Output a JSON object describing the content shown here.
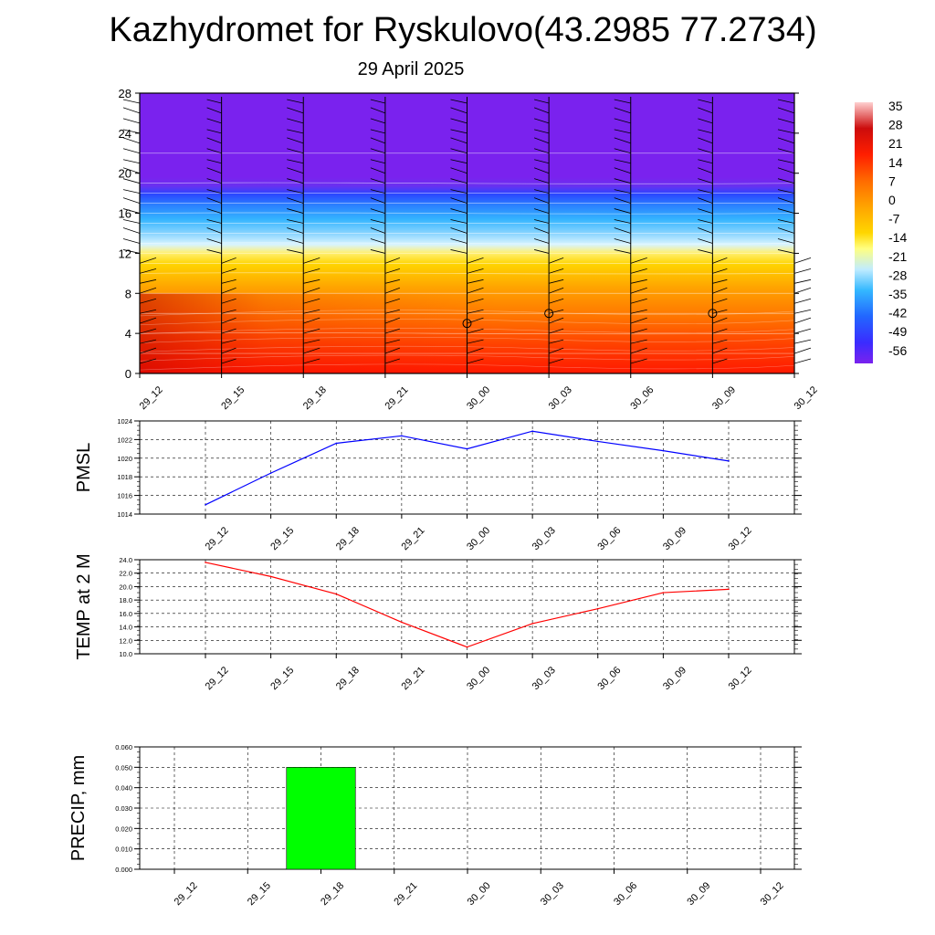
{
  "title": "Kazhydromet for Ryskulovo(43.2985 77.2734)",
  "subtitle": "29 April 2025",
  "colors": {
    "pmsl_line": "#0000ff",
    "temp_line": "#ff0000",
    "precip_bar": "#00ff00",
    "section_top": "#7a22ee",
    "section_bottom": "#ff1800"
  },
  "chart_data": [
    {
      "type": "heatmap",
      "title": "",
      "xlabel": "",
      "ylabel": "",
      "categories": [
        "29_12",
        "29_15",
        "29_18",
        "29_21",
        "30_00",
        "30_03",
        "30_06",
        "30_09",
        "30_12"
      ],
      "y_ticks": [
        0,
        4,
        8,
        12,
        16,
        20,
        24,
        28
      ],
      "ylim": [
        0,
        28
      ],
      "colorbar_labels": [
        "35",
        "28",
        "21",
        "14",
        "7",
        "0",
        "-7",
        "-14",
        "-21",
        "-28",
        "-35",
        "-42",
        "-49",
        "-56"
      ],
      "colorbar_range": [
        -60,
        40
      ],
      "levels": [
        0,
        2,
        4,
        6,
        8,
        10,
        11,
        12,
        13,
        14,
        15,
        16,
        17,
        18,
        19,
        22,
        28
      ],
      "values_by_level": [
        24,
        21,
        18,
        15,
        12,
        7,
        2,
        -4,
        -12,
        -22,
        -32,
        -40,
        -48,
        -56,
        -60,
        -60,
        -60
      ],
      "calm_markers": [
        {
          "time": "30_00",
          "level": 5
        },
        {
          "time": "30_03",
          "level": 6
        },
        {
          "time": "30_09",
          "level": 6
        }
      ],
      "grid": false
    },
    {
      "type": "line",
      "ylabel": "PMSL",
      "categories": [
        "29_12",
        "29_15",
        "29_18",
        "29_21",
        "30_00",
        "30_03",
        "30_06",
        "30_09",
        "30_12"
      ],
      "y_ticks": [
        "1014",
        "1016",
        "1018",
        "1020",
        "1022",
        "1024"
      ],
      "ylim": [
        1014,
        1024
      ],
      "series": [
        {
          "values": [
            1015.0,
            1018.4,
            1021.6,
            1022.4,
            1021.0,
            1022.9,
            1021.8,
            1020.8,
            1019.7
          ]
        }
      ],
      "grid": true
    },
    {
      "type": "line",
      "ylabel": "TEMP at 2 M",
      "categories": [
        "29_12",
        "29_15",
        "29_18",
        "29_21",
        "30_00",
        "30_03",
        "30_06",
        "30_09",
        "30_12"
      ],
      "y_ticks": [
        "10.0",
        "12.0",
        "14.0",
        "16.0",
        "18.0",
        "20.0",
        "22.0",
        "24.0"
      ],
      "ylim": [
        10,
        24
      ],
      "series": [
        {
          "values": [
            23.6,
            21.5,
            18.9,
            14.7,
            11.0,
            14.5,
            16.7,
            19.1,
            19.6
          ]
        }
      ],
      "grid": true
    },
    {
      "type": "bar",
      "ylabel": "PRECIP, mm",
      "categories": [
        "29_12",
        "29_15",
        "29_18",
        "29_21",
        "30_00",
        "30_03",
        "30_06",
        "30_09",
        "30_12"
      ],
      "y_ticks": [
        "0.000",
        "0.010",
        "0.020",
        "0.030",
        "0.040",
        "0.050",
        "0.060"
      ],
      "ylim": [
        0,
        0.06
      ],
      "values": [
        0,
        0,
        0.05,
        0,
        0,
        0,
        0,
        0,
        0
      ],
      "grid": true
    }
  ]
}
